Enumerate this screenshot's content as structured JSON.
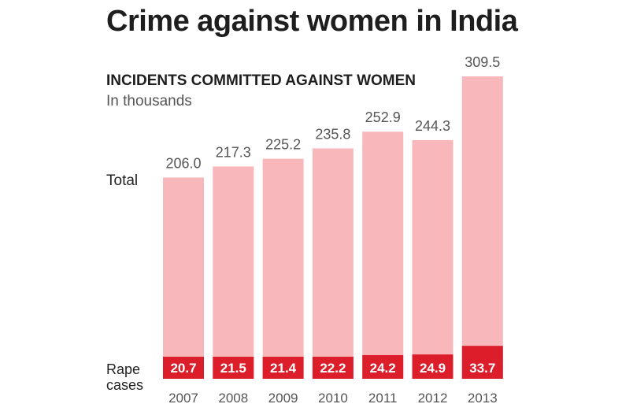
{
  "chart_data": {
    "type": "bar",
    "title": "Crime against women in India",
    "subtitle": "INCIDENTS COMMITTED AGAINST WOMEN",
    "unit": "In thousands",
    "categories": [
      "2007",
      "2008",
      "2009",
      "2010",
      "2011",
      "2012",
      "2013"
    ],
    "series": [
      {
        "name": "Total",
        "values": [
          206.0,
          217.3,
          225.2,
          235.8,
          252.9,
          244.3,
          309.5
        ]
      },
      {
        "name": "Rape cases",
        "values": [
          20.7,
          21.5,
          21.4,
          22.2,
          24.2,
          24.9,
          33.7
        ]
      }
    ],
    "series_labels": {
      "total": "Total",
      "rape_line1": "Rape",
      "rape_line2": "cases"
    },
    "colors": {
      "total": "#f7b7bb",
      "rape": "#dc1e2b"
    },
    "ylim": [
      0,
      309.5
    ]
  }
}
